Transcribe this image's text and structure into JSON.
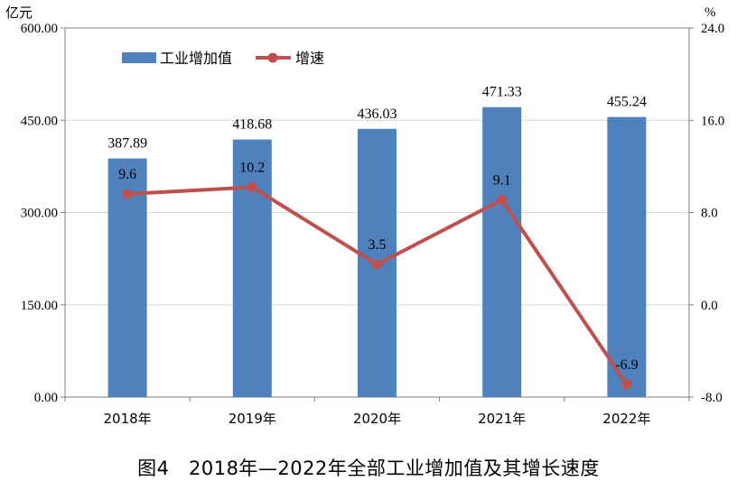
{
  "chart_data": {
    "type": "bar+line",
    "title": "图4　2018年—2022年全部工业增加值及其增长速度",
    "categories": [
      "2018年",
      "2019年",
      "2020年",
      "2021年",
      "2022年"
    ],
    "series": [
      {
        "name": "工业增加值",
        "type": "bar",
        "axis": "left",
        "values": [
          387.89,
          418.68,
          436.03,
          471.33,
          455.24
        ],
        "labels": [
          "387.89",
          "418.68",
          "436.03",
          "471.33",
          "455.24"
        ],
        "color": "#4f81bd"
      },
      {
        "name": "增速",
        "type": "line",
        "axis": "right",
        "values": [
          9.6,
          10.2,
          3.5,
          9.1,
          -6.9
        ],
        "labels": [
          "9.6",
          "10.2",
          "3.5",
          "9.1",
          "-6.9"
        ],
        "color": "#c0504d"
      }
    ],
    "y_left": {
      "unit": "亿元",
      "ylim": [
        0,
        600
      ],
      "ticks": [
        0,
        150,
        300,
        450,
        600
      ],
      "tick_labels": [
        "0.00",
        "150.00",
        "300.00",
        "450.00",
        "600.00"
      ]
    },
    "y_right": {
      "unit": "%",
      "ylim": [
        -8,
        24
      ],
      "ticks": [
        -8,
        0,
        8,
        16,
        24
      ],
      "tick_labels": [
        "-8.0",
        "0.0",
        "8.0",
        "16.0",
        "24.0"
      ]
    },
    "grid": true,
    "legend": "top-left"
  }
}
